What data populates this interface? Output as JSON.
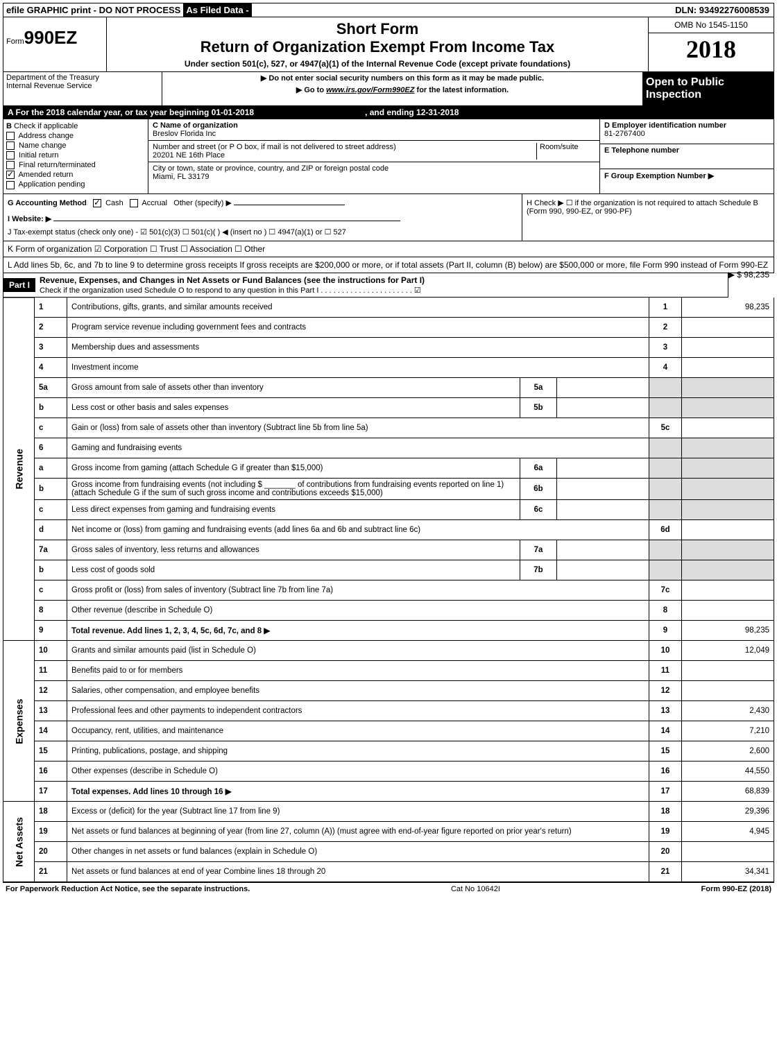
{
  "topbar": {
    "efile": "efile GRAPHIC print - DO NOT PROCESS",
    "asfiled": "As Filed Data -",
    "dln": "DLN: 93492276008539"
  },
  "header": {
    "form_prefix": "Form",
    "form_no": "990EZ",
    "short": "Short Form",
    "title": "Return of Organization Exempt From Income Tax",
    "subtitle": "Under section 501(c), 527, or 4947(a)(1) of the Internal Revenue Code (except private foundations)",
    "dept": "Department of the Treasury",
    "irs": "Internal Revenue Service",
    "warn1": "▶ Do not enter social security numbers on this form as it may be made public.",
    "warn2_pre": "▶ Go to ",
    "warn2_link": "www.irs.gov/Form990EZ",
    "warn2_post": " for the latest information.",
    "omb": "OMB No 1545-1150",
    "year": "2018",
    "open": "Open to Public Inspection"
  },
  "sectionA": {
    "text": "A  For the 2018 calendar year, or tax year beginning 01-01-2018",
    "ending": ", and ending 12-31-2018"
  },
  "sectionB": {
    "label": "B",
    "check_if": "Check if applicable",
    "items": [
      "Address change",
      "Name change",
      "Initial return",
      "Final return/terminated",
      "Amended return",
      "Application pending"
    ],
    "checked_idx": 4
  },
  "sectionC": {
    "c_label": "C Name of organization",
    "c_name": "Breslov Florida Inc",
    "addr_label": "Number and street (or P O box, if mail is not delivered to street address)",
    "addr": "20201 NE 16th Place",
    "room_label": "Room/suite",
    "city_label": "City or town, state or province, country, and ZIP or foreign postal code",
    "city": "Miami, FL  33179"
  },
  "sectionD": {
    "label": "D Employer identification number",
    "value": "81-2767400"
  },
  "sectionE": {
    "label": "E Telephone number",
    "value": ""
  },
  "sectionF": {
    "label": "F Group Exemption Number   ▶",
    "value": ""
  },
  "sectionG": {
    "label": "G Accounting Method",
    "cash": "Cash",
    "accrual": "Accrual",
    "other": "Other (specify) ▶"
  },
  "sectionH": {
    "text": "H  Check ▶  ☐  if the organization is not required to attach Schedule B (Form 990, 990-EZ, or 990-PF)"
  },
  "sectionI": {
    "label": "I Website: ▶"
  },
  "sectionJ": {
    "text": "J Tax-exempt status (check only one) - ☑ 501(c)(3) ☐ 501(c)( ) ◀ (insert no ) ☐ 4947(a)(1) or ☐ 527"
  },
  "sectionK": {
    "text": "K Form of organization   ☑ Corporation  ☐ Trust  ☐ Association  ☐ Other"
  },
  "sectionL": {
    "text": "L Add lines 5b, 6c, and 7b to line 9 to determine gross receipts  If gross receipts are $200,000 or more, or if total assets (Part II, column (B) below) are $500,000 or more, file Form 990 instead of Form 990-EZ",
    "amount": "▶ $ 98,235"
  },
  "part1": {
    "label": "Part I",
    "title": "Revenue, Expenses, and Changes in Net Assets or Fund Balances (see the instructions for Part I)",
    "check": "Check if the organization used Schedule O to respond to any question in this Part I . . . . . . . . . . . . . . . . . . . . . . ☑"
  },
  "sidelabels": {
    "revenue": "Revenue",
    "expenses": "Expenses",
    "netassets": "Net Assets"
  },
  "lines": [
    {
      "n": "1",
      "desc": "Contributions, gifts, grants, and similar amounts received",
      "box": "1",
      "amt": "98,235"
    },
    {
      "n": "2",
      "desc": "Program service revenue including government fees and contracts",
      "box": "2",
      "amt": ""
    },
    {
      "n": "3",
      "desc": "Membership dues and assessments",
      "box": "3",
      "amt": ""
    },
    {
      "n": "4",
      "desc": "Investment income",
      "box": "4",
      "amt": ""
    },
    {
      "n": "5a",
      "desc": "Gross amount from sale of assets other than inventory",
      "inner": "5a"
    },
    {
      "n": "b",
      "desc": "Less  cost or other basis and sales expenses",
      "inner": "5b"
    },
    {
      "n": "c",
      "desc": "Gain or (loss) from sale of assets other than inventory (Subtract line 5b from line 5a)",
      "box": "5c",
      "amt": ""
    },
    {
      "n": "6",
      "desc": "Gaming and fundraising events"
    },
    {
      "n": "a",
      "desc": "Gross income from gaming (attach Schedule G if greater than $15,000)",
      "inner": "6a"
    },
    {
      "n": "b",
      "desc": "Gross income from fundraising events (not including $ _______ of contributions from fundraising events reported on line 1) (attach Schedule G if the sum of such gross income and contributions exceeds $15,000)",
      "inner": "6b"
    },
    {
      "n": "c",
      "desc": "Less  direct expenses from gaming and fundraising events",
      "inner": "6c"
    },
    {
      "n": "d",
      "desc": "Net income or (loss) from gaming and fundraising events (add lines 6a and 6b and subtract line 6c)",
      "box": "6d",
      "amt": ""
    },
    {
      "n": "7a",
      "desc": "Gross sales of inventory, less returns and allowances",
      "inner": "7a"
    },
    {
      "n": "b",
      "desc": "Less  cost of goods sold",
      "inner": "7b"
    },
    {
      "n": "c",
      "desc": "Gross profit or (loss) from sales of inventory (Subtract line 7b from line 7a)",
      "box": "7c",
      "amt": ""
    },
    {
      "n": "8",
      "desc": "Other revenue (describe in Schedule O)",
      "box": "8",
      "amt": ""
    },
    {
      "n": "9",
      "desc": "Total revenue. Add lines 1, 2, 3, 4, 5c, 6d, 7c, and 8   ▶",
      "box": "9",
      "amt": "98,235",
      "bold": true
    },
    {
      "n": "10",
      "desc": "Grants and similar amounts paid (list in Schedule O)",
      "box": "10",
      "amt": "12,049"
    },
    {
      "n": "11",
      "desc": "Benefits paid to or for members",
      "box": "11",
      "amt": ""
    },
    {
      "n": "12",
      "desc": "Salaries, other compensation, and employee benefits",
      "box": "12",
      "amt": ""
    },
    {
      "n": "13",
      "desc": "Professional fees and other payments to independent contractors",
      "box": "13",
      "amt": "2,430"
    },
    {
      "n": "14",
      "desc": "Occupancy, rent, utilities, and maintenance",
      "box": "14",
      "amt": "7,210"
    },
    {
      "n": "15",
      "desc": "Printing, publications, postage, and shipping",
      "box": "15",
      "amt": "2,600"
    },
    {
      "n": "16",
      "desc": "Other expenses (describe in Schedule O)",
      "box": "16",
      "amt": "44,550"
    },
    {
      "n": "17",
      "desc": "Total expenses. Add lines 10 through 16   ▶",
      "box": "17",
      "amt": "68,839",
      "bold": true
    },
    {
      "n": "18",
      "desc": "Excess or (deficit) for the year (Subtract line 17 from line 9)",
      "box": "18",
      "amt": "29,396"
    },
    {
      "n": "19",
      "desc": "Net assets or fund balances at beginning of year (from line 27, column (A)) (must agree with end-of-year figure reported on prior year's return)",
      "box": "19",
      "amt": "4,945"
    },
    {
      "n": "20",
      "desc": "Other changes in net assets or fund balances (explain in Schedule O)",
      "box": "20",
      "amt": ""
    },
    {
      "n": "21",
      "desc": "Net assets or fund balances at end of year  Combine lines 18 through 20",
      "box": "21",
      "amt": "34,341"
    }
  ],
  "footer": {
    "left": "For Paperwork Reduction Act Notice, see the separate instructions.",
    "center": "Cat No 10642I",
    "right": "Form 990-EZ (2018)"
  }
}
